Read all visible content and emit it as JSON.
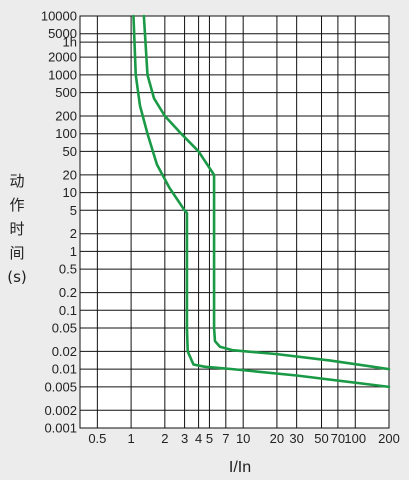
{
  "chart_data": {
    "type": "line",
    "title": "",
    "xlabel": "I/In",
    "ylabel": "动作时间(s)",
    "ylabel_chars": [
      "动",
      "作",
      "时",
      "间",
      "(s)"
    ],
    "x_scale": "log",
    "y_scale": "log",
    "xlim": [
      0.35,
      200
    ],
    "ylim": [
      0.001,
      10000
    ],
    "grid": true,
    "line_color": "#1a9a46",
    "x_ticks": [
      {
        "value": 0.5,
        "label": "0.5"
      },
      {
        "value": 1,
        "label": "1"
      },
      {
        "value": 2,
        "label": "2"
      },
      {
        "value": 3,
        "label": "3"
      },
      {
        "value": 4,
        "label": "4"
      },
      {
        "value": 5,
        "label": "5"
      },
      {
        "value": 7,
        "label": "7"
      },
      {
        "value": 10,
        "label": "10"
      },
      {
        "value": 20,
        "label": "20"
      },
      {
        "value": 30,
        "label": "30"
      },
      {
        "value": 50,
        "label": "50"
      },
      {
        "value": 70,
        "label": "70"
      },
      {
        "value": 100,
        "label": "100"
      },
      {
        "value": 200,
        "label": "200"
      }
    ],
    "y_ticks": [
      {
        "value": 10000,
        "label": "10000"
      },
      {
        "value": 5000,
        "label": "5000"
      },
      {
        "value": 3600,
        "label": "1h"
      },
      {
        "value": 2000,
        "label": "2000"
      },
      {
        "value": 1000,
        "label": "1000"
      },
      {
        "value": 500,
        "label": "500"
      },
      {
        "value": 200,
        "label": "200"
      },
      {
        "value": 100,
        "label": "100"
      },
      {
        "value": 50,
        "label": "50"
      },
      {
        "value": 20,
        "label": "20"
      },
      {
        "value": 10,
        "label": "10"
      },
      {
        "value": 5,
        "label": "5"
      },
      {
        "value": 2,
        "label": "2"
      },
      {
        "value": 1,
        "label": "1"
      },
      {
        "value": 0.5,
        "label": "0.5"
      },
      {
        "value": 0.2,
        "label": "0.2"
      },
      {
        "value": 0.1,
        "label": "0.1"
      },
      {
        "value": 0.05,
        "label": "0.05"
      },
      {
        "value": 0.02,
        "label": "0.02"
      },
      {
        "value": 0.01,
        "label": "0.01"
      },
      {
        "value": 0.005,
        "label": "0.005"
      },
      {
        "value": 0.002,
        "label": "0.002"
      },
      {
        "value": 0.001,
        "label": "0.001"
      }
    ],
    "series": [
      {
        "points": [
          [
            1.05,
            10000
          ],
          [
            1.1,
            1000
          ],
          [
            1.2,
            300
          ],
          [
            1.4,
            100
          ],
          [
            1.7,
            30
          ],
          [
            2.2,
            12
          ],
          [
            3.0,
            5.0
          ],
          [
            3.15,
            4.5
          ],
          [
            3.15,
            0.05
          ],
          [
            3.2,
            0.02
          ],
          [
            3.6,
            0.012
          ],
          [
            4.5,
            0.011
          ],
          [
            8,
            0.01
          ],
          [
            30,
            0.0078
          ],
          [
            200,
            0.005
          ]
        ]
      },
      {
        "points": [
          [
            1.3,
            10000
          ],
          [
            1.4,
            1000
          ],
          [
            1.6,
            400
          ],
          [
            2.0,
            200
          ],
          [
            2.8,
            100
          ],
          [
            4.0,
            50
          ],
          [
            5.5,
            20
          ],
          [
            5.5,
            0.05
          ],
          [
            5.6,
            0.03
          ],
          [
            6.2,
            0.024
          ],
          [
            8,
            0.021
          ],
          [
            20,
            0.018
          ],
          [
            60,
            0.014
          ],
          [
            200,
            0.01
          ]
        ]
      }
    ]
  }
}
